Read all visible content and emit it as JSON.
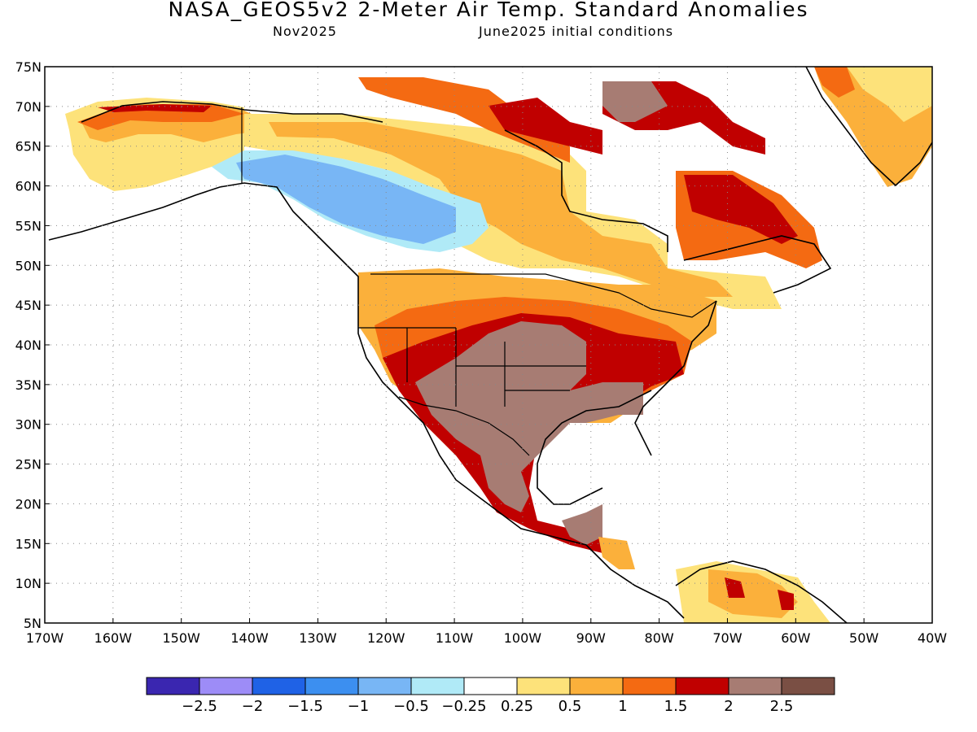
{
  "header": {
    "title": "NASA_GEOS5v2 2-Meter Air Temp. Standard Anomalies",
    "month": "Nov2025",
    "init": "June2025 initial conditions"
  },
  "map": {
    "lon_range": [
      -170,
      -40
    ],
    "lat_range": [
      5,
      75
    ],
    "lat_ticks": [
      "75N",
      "70N",
      "65N",
      "60N",
      "55N",
      "50N",
      "45N",
      "40N",
      "35N",
      "30N",
      "25N",
      "20N",
      "15N",
      "10N",
      "5N"
    ],
    "lon_ticks": [
      "170W",
      "160W",
      "150W",
      "140W",
      "130W",
      "120W",
      "110W",
      "100W",
      "90W",
      "80W",
      "70W",
      "60W",
      "50W",
      "40W"
    ],
    "grid": "dotted"
  },
  "colorbar": {
    "colors": [
      "#3a26b0",
      "#9d8cf7",
      "#1f62e6",
      "#3c8ff0",
      "#78b6f5",
      "#b0eaf7",
      "#ffffff",
      "#fde27a",
      "#fbb03b",
      "#f46a12",
      "#c00000",
      "#a77c73",
      "#7a4f44"
    ],
    "labels": [
      "−2.5",
      "−2",
      "−1.5",
      "−1",
      "−0.5",
      "−0.25",
      "0.25",
      "0.5",
      "1",
      "1.5",
      "2",
      "2.5"
    ]
  }
}
